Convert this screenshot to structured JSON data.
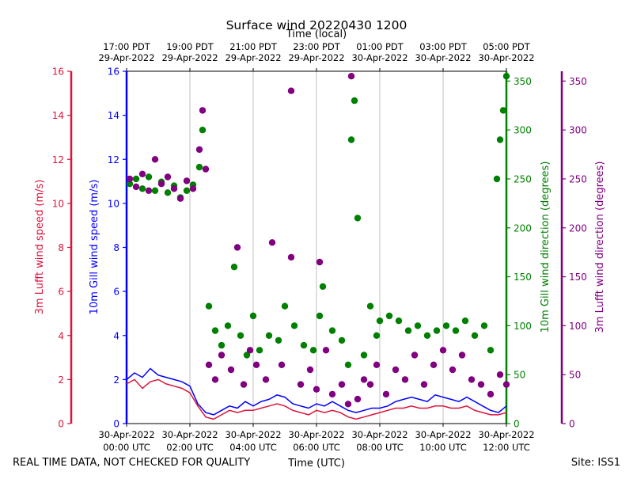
{
  "chart_data": {
    "type": "scatter",
    "title": "Surface wind 20220430 1200",
    "top_axis_title": "Time (local)",
    "bottom_axis_title": "Time (UTC)",
    "footer_left": "REAL TIME DATA, NOT CHECKED FOR QUALITY",
    "footer_right": "Site: ISS1",
    "x_range_hours_utc": [
      0,
      12
    ],
    "bottom_ticks": [
      {
        "h": 0,
        "line1": "30-Apr-2022",
        "line2": "00:00 UTC"
      },
      {
        "h": 2,
        "line1": "30-Apr-2022",
        "line2": "02:00 UTC"
      },
      {
        "h": 4,
        "line1": "30-Apr-2022",
        "line2": "04:00 UTC"
      },
      {
        "h": 6,
        "line1": "30-Apr-2022",
        "line2": "06:00 UTC"
      },
      {
        "h": 8,
        "line1": "30-Apr-2022",
        "line2": "08:00 UTC"
      },
      {
        "h": 10,
        "line1": "30-Apr-2022",
        "line2": "10:00 UTC"
      },
      {
        "h": 12,
        "line1": "30-Apr-2022",
        "line2": "12:00 UTC"
      }
    ],
    "top_ticks": [
      {
        "h": 0,
        "line1": "17:00 PDT",
        "line2": "29-Apr-2022"
      },
      {
        "h": 2,
        "line1": "19:00 PDT",
        "line2": "29-Apr-2022"
      },
      {
        "h": 4,
        "line1": "21:00 PDT",
        "line2": "29-Apr-2022"
      },
      {
        "h": 6,
        "line1": "23:00 PDT",
        "line2": "29-Apr-2022"
      },
      {
        "h": 8,
        "line1": "01:00 PDT",
        "line2": "30-Apr-2022"
      },
      {
        "h": 10,
        "line1": "03:00 PDT",
        "line2": "30-Apr-2022"
      },
      {
        "h": 12,
        "line1": "05:00 PDT",
        "line2": "30-Apr-2022"
      }
    ],
    "axes": {
      "lufft_speed": {
        "label": "3m Lufft wind speed (m/s)",
        "color": "#dc143c",
        "ylim": [
          0,
          16
        ],
        "ticks": [
          "0",
          "2",
          "4",
          "6",
          "8",
          "10",
          "12",
          "14",
          "16"
        ]
      },
      "gill_speed": {
        "label": "10m Gill wind speed (m/s)",
        "color": "#0000ff",
        "ylim": [
          0,
          16
        ],
        "ticks": [
          "0",
          "2",
          "4",
          "6",
          "8",
          "10",
          "12",
          "14",
          "16"
        ]
      },
      "gill_dir": {
        "label": "10m Gill wind direction (degrees)",
        "color": "#008000",
        "ylim": [
          0,
          360
        ],
        "ticks": [
          "0",
          "50",
          "100",
          "150",
          "200",
          "250",
          "300",
          "350"
        ]
      },
      "lufft_dir": {
        "label": "3m Lufft wind direction (degrees)",
        "color": "#800080",
        "ylim": [
          0,
          360
        ],
        "ticks": [
          "0",
          "50",
          "100",
          "150",
          "200",
          "250",
          "300",
          "350"
        ]
      }
    },
    "series": [
      {
        "name": "10m Gill wind speed",
        "axis": "gill_speed",
        "style": "line",
        "points": [
          [
            0,
            2.0
          ],
          [
            0.25,
            2.3
          ],
          [
            0.5,
            2.1
          ],
          [
            0.75,
            2.5
          ],
          [
            1.0,
            2.2
          ],
          [
            1.25,
            2.1
          ],
          [
            1.5,
            2.0
          ],
          [
            1.75,
            1.9
          ],
          [
            2.0,
            1.7
          ],
          [
            2.25,
            0.9
          ],
          [
            2.5,
            0.5
          ],
          [
            2.75,
            0.4
          ],
          [
            3.0,
            0.6
          ],
          [
            3.25,
            0.8
          ],
          [
            3.5,
            0.7
          ],
          [
            3.75,
            1.0
          ],
          [
            4.0,
            0.8
          ],
          [
            4.25,
            1.0
          ],
          [
            4.5,
            1.1
          ],
          [
            4.75,
            1.3
          ],
          [
            5.0,
            1.2
          ],
          [
            5.25,
            0.9
          ],
          [
            5.5,
            0.8
          ],
          [
            5.75,
            0.7
          ],
          [
            6.0,
            0.9
          ],
          [
            6.25,
            0.8
          ],
          [
            6.5,
            1.0
          ],
          [
            6.75,
            0.8
          ],
          [
            7.0,
            0.6
          ],
          [
            7.25,
            0.5
          ],
          [
            7.5,
            0.6
          ],
          [
            7.75,
            0.7
          ],
          [
            8.0,
            0.7
          ],
          [
            8.25,
            0.8
          ],
          [
            8.5,
            1.0
          ],
          [
            8.75,
            1.1
          ],
          [
            9.0,
            1.2
          ],
          [
            9.25,
            1.1
          ],
          [
            9.5,
            1.0
          ],
          [
            9.75,
            1.3
          ],
          [
            10.0,
            1.2
          ],
          [
            10.25,
            1.1
          ],
          [
            10.5,
            1.0
          ],
          [
            10.75,
            1.2
          ],
          [
            11.0,
            1.0
          ],
          [
            11.25,
            0.8
          ],
          [
            11.5,
            0.6
          ],
          [
            11.75,
            0.5
          ],
          [
            12.0,
            0.8
          ]
        ]
      },
      {
        "name": "3m Lufft wind speed",
        "axis": "lufft_speed",
        "style": "line",
        "points": [
          [
            0,
            1.8
          ],
          [
            0.25,
            2.0
          ],
          [
            0.5,
            1.6
          ],
          [
            0.75,
            1.9
          ],
          [
            1.0,
            2.0
          ],
          [
            1.25,
            1.8
          ],
          [
            1.5,
            1.7
          ],
          [
            1.75,
            1.6
          ],
          [
            2.0,
            1.4
          ],
          [
            2.25,
            0.8
          ],
          [
            2.5,
            0.3
          ],
          [
            2.75,
            0.2
          ],
          [
            3.0,
            0.4
          ],
          [
            3.25,
            0.6
          ],
          [
            3.5,
            0.5
          ],
          [
            3.75,
            0.6
          ],
          [
            4.0,
            0.6
          ],
          [
            4.25,
            0.7
          ],
          [
            4.5,
            0.8
          ],
          [
            4.75,
            0.9
          ],
          [
            5.0,
            0.8
          ],
          [
            5.25,
            0.6
          ],
          [
            5.5,
            0.5
          ],
          [
            5.75,
            0.4
          ],
          [
            6.0,
            0.6
          ],
          [
            6.25,
            0.5
          ],
          [
            6.5,
            0.6
          ],
          [
            6.75,
            0.5
          ],
          [
            7.0,
            0.3
          ],
          [
            7.25,
            0.2
          ],
          [
            7.5,
            0.3
          ],
          [
            7.75,
            0.4
          ],
          [
            8.0,
            0.5
          ],
          [
            8.25,
            0.6
          ],
          [
            8.5,
            0.7
          ],
          [
            8.75,
            0.7
          ],
          [
            9.0,
            0.8
          ],
          [
            9.25,
            0.7
          ],
          [
            9.5,
            0.7
          ],
          [
            9.75,
            0.8
          ],
          [
            10.0,
            0.8
          ],
          [
            10.25,
            0.7
          ],
          [
            10.5,
            0.7
          ],
          [
            10.75,
            0.8
          ],
          [
            11.0,
            0.6
          ],
          [
            11.25,
            0.5
          ],
          [
            11.5,
            0.4
          ],
          [
            11.75,
            0.4
          ],
          [
            12.0,
            0.5
          ]
        ]
      },
      {
        "name": "10m Gill wind direction",
        "axis": "gill_dir",
        "style": "scatter",
        "points": [
          [
            0.1,
            245
          ],
          [
            0.3,
            250
          ],
          [
            0.5,
            240
          ],
          [
            0.7,
            252
          ],
          [
            0.9,
            238
          ],
          [
            1.1,
            247
          ],
          [
            1.3,
            236
          ],
          [
            1.5,
            243
          ],
          [
            1.7,
            231
          ],
          [
            1.9,
            238
          ],
          [
            2.1,
            244
          ],
          [
            2.3,
            262
          ],
          [
            2.4,
            300
          ],
          [
            2.6,
            120
          ],
          [
            2.8,
            95
          ],
          [
            3.0,
            80
          ],
          [
            3.2,
            100
          ],
          [
            3.4,
            160
          ],
          [
            3.6,
            90
          ],
          [
            3.8,
            70
          ],
          [
            4.0,
            110
          ],
          [
            4.2,
            75
          ],
          [
            4.5,
            90
          ],
          [
            4.8,
            85
          ],
          [
            5.0,
            120
          ],
          [
            5.3,
            100
          ],
          [
            5.6,
            80
          ],
          [
            5.9,
            75
          ],
          [
            6.1,
            110
          ],
          [
            6.2,
            140
          ],
          [
            6.5,
            95
          ],
          [
            6.8,
            85
          ],
          [
            7.0,
            60
          ],
          [
            7.1,
            290
          ],
          [
            7.2,
            330
          ],
          [
            7.3,
            210
          ],
          [
            7.5,
            70
          ],
          [
            7.7,
            120
          ],
          [
            7.9,
            90
          ],
          [
            8.0,
            105
          ],
          [
            8.3,
            110
          ],
          [
            8.6,
            105
          ],
          [
            8.9,
            95
          ],
          [
            9.2,
            100
          ],
          [
            9.5,
            90
          ],
          [
            9.8,
            95
          ],
          [
            10.1,
            100
          ],
          [
            10.4,
            95
          ],
          [
            10.7,
            105
          ],
          [
            11.0,
            90
          ],
          [
            11.3,
            100
          ],
          [
            11.5,
            75
          ],
          [
            11.7,
            250
          ],
          [
            11.8,
            290
          ],
          [
            11.9,
            320
          ],
          [
            12.0,
            355
          ]
        ]
      },
      {
        "name": "3m Lufft wind direction",
        "axis": "lufft_dir",
        "style": "scatter",
        "points": [
          [
            0.1,
            250
          ],
          [
            0.3,
            242
          ],
          [
            0.5,
            255
          ],
          [
            0.7,
            238
          ],
          [
            0.9,
            270
          ],
          [
            1.1,
            245
          ],
          [
            1.3,
            252
          ],
          [
            1.5,
            240
          ],
          [
            1.7,
            230
          ],
          [
            1.9,
            248
          ],
          [
            2.1,
            240
          ],
          [
            2.3,
            280
          ],
          [
            2.4,
            320
          ],
          [
            2.5,
            260
          ],
          [
            2.6,
            60
          ],
          [
            2.8,
            45
          ],
          [
            3.0,
            70
          ],
          [
            3.3,
            55
          ],
          [
            3.5,
            180
          ],
          [
            3.7,
            40
          ],
          [
            3.9,
            75
          ],
          [
            4.1,
            60
          ],
          [
            4.4,
            45
          ],
          [
            4.6,
            185
          ],
          [
            4.9,
            60
          ],
          [
            5.2,
            170
          ],
          [
            5.2,
            340
          ],
          [
            5.5,
            40
          ],
          [
            5.8,
            55
          ],
          [
            6.0,
            35
          ],
          [
            6.1,
            165
          ],
          [
            6.3,
            75
          ],
          [
            6.5,
            30
          ],
          [
            6.8,
            40
          ],
          [
            7.0,
            20
          ],
          [
            7.1,
            355
          ],
          [
            7.3,
            25
          ],
          [
            7.5,
            45
          ],
          [
            7.7,
            40
          ],
          [
            7.9,
            60
          ],
          [
            8.2,
            30
          ],
          [
            8.5,
            55
          ],
          [
            8.8,
            45
          ],
          [
            9.1,
            70
          ],
          [
            9.4,
            40
          ],
          [
            9.7,
            60
          ],
          [
            10.0,
            75
          ],
          [
            10.3,
            55
          ],
          [
            10.6,
            70
          ],
          [
            10.9,
            45
          ],
          [
            11.2,
            40
          ],
          [
            11.5,
            30
          ],
          [
            11.8,
            50
          ],
          [
            12.0,
            40
          ]
        ]
      }
    ]
  }
}
